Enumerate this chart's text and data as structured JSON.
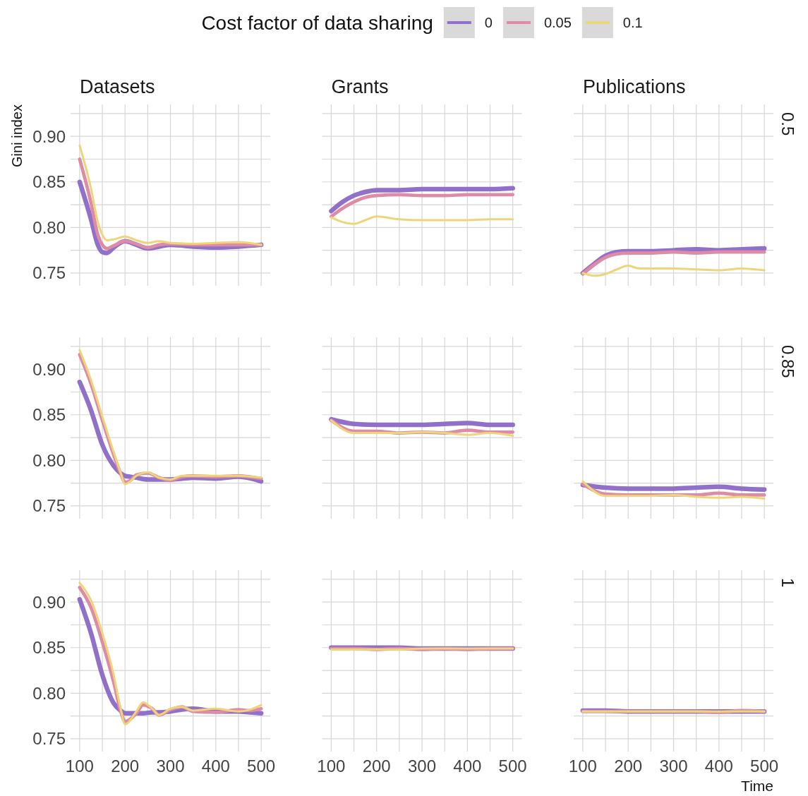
{
  "chart_data": [
    {
      "type": "line",
      "title": "Datasets",
      "ylabel": "Gini index",
      "legend": "top",
      "legend_title": "Cost factor of data sharing",
      "grid": true,
      "tick_labels": "y",
      "xlim": [
        80,
        520
      ],
      "ylim": [
        0.736,
        0.935
      ],
      "xticks": [
        100,
        150,
        200,
        250,
        300,
        350,
        400,
        450,
        500
      ],
      "yticks": [
        0.75,
        {
          "value": 0.775,
          "label": null
        },
        {
          "value": 0.8,
          "label": "0.80"
        },
        {
          "value": 0.825,
          "label": null
        },
        0.85,
        {
          "value": 0.875,
          "label": null
        },
        {
          "value": 0.9,
          "label": "0.90"
        },
        {
          "value": 0.925,
          "label": null
        }
      ],
      "x": [
        100,
        125,
        140,
        150,
        160,
        175,
        200,
        225,
        250,
        275,
        300,
        350,
        400,
        450,
        500
      ],
      "series": [
        {
          "name": "0",
          "color": "#9170c9",
          "values": [
            0.85,
            0.809,
            0.781,
            0.773,
            0.772,
            0.778,
            0.785,
            0.781,
            0.777,
            0.779,
            0.781,
            0.779,
            0.778,
            0.779,
            0.781
          ]
        },
        {
          "name": "0.05",
          "color": "#de8ca6",
          "values": [
            0.875,
            0.827,
            0.792,
            0.781,
            0.777,
            0.78,
            0.785,
            0.782,
            0.778,
            0.781,
            0.782,
            0.781,
            0.781,
            0.781,
            0.781
          ]
        },
        {
          "name": "0.1",
          "color": "#eed57a",
          "values": [
            0.89,
            0.843,
            0.806,
            0.792,
            0.786,
            0.787,
            0.79,
            0.786,
            0.783,
            0.785,
            0.783,
            0.782,
            0.783,
            0.784,
            0.781
          ]
        }
      ]
    },
    {
      "type": "line",
      "title": "Grants",
      "grid": true,
      "tick_labels": false,
      "xlim": [
        80,
        520
      ],
      "ylim": [
        0.736,
        0.935
      ],
      "xticks": [
        100,
        150,
        200,
        250,
        300,
        350,
        400,
        450,
        500
      ],
      "yticks": [
        0.75,
        0.775,
        0.8,
        0.825,
        0.85,
        0.875,
        0.9,
        0.925
      ],
      "x": [
        100,
        125,
        150,
        175,
        200,
        250,
        300,
        350,
        400,
        450,
        500
      ],
      "series": [
        {
          "color": "#9170c9",
          "values": [
            0.818,
            0.828,
            0.835,
            0.839,
            0.841,
            0.841,
            0.842,
            0.842,
            0.842,
            0.842,
            0.843
          ]
        },
        {
          "color": "#de8ca6",
          "values": [
            0.812,
            0.821,
            0.828,
            0.833,
            0.835,
            0.836,
            0.835,
            0.835,
            0.836,
            0.836,
            0.836
          ]
        },
        {
          "color": "#eed57a",
          "values": [
            0.811,
            0.806,
            0.804,
            0.808,
            0.812,
            0.809,
            0.808,
            0.808,
            0.808,
            0.809,
            0.809
          ]
        }
      ]
    },
    {
      "type": "line",
      "title": "Publications",
      "annotations": [
        "0.5"
      ],
      "grid": true,
      "tick_labels": false,
      "xlim": [
        80,
        520
      ],
      "ylim": [
        0.736,
        0.935
      ],
      "xticks": [
        100,
        150,
        200,
        250,
        300,
        350,
        400,
        450,
        500
      ],
      "yticks": [
        0.75,
        0.775,
        0.8,
        0.825,
        0.85,
        0.875,
        0.9,
        0.925
      ],
      "x": [
        100,
        125,
        150,
        175,
        200,
        225,
        250,
        300,
        350,
        400,
        450,
        500
      ],
      "series": [
        {
          "color": "#9170c9",
          "values": [
            0.75,
            0.76,
            0.769,
            0.773,
            0.774,
            0.774,
            0.774,
            0.775,
            0.776,
            0.775,
            0.776,
            0.777
          ]
        },
        {
          "color": "#de8ca6",
          "values": [
            0.749,
            0.759,
            0.767,
            0.771,
            0.772,
            0.772,
            0.772,
            0.773,
            0.772,
            0.773,
            0.773,
            0.773
          ]
        },
        {
          "color": "#eed57a",
          "values": [
            0.75,
            0.747,
            0.749,
            0.754,
            0.758,
            0.755,
            0.755,
            0.755,
            0.754,
            0.753,
            0.755,
            0.753
          ]
        }
      ]
    },
    {
      "type": "line",
      "grid": true,
      "tick_labels": "y",
      "xlim": [
        80,
        520
      ],
      "ylim": [
        0.736,
        0.935
      ],
      "xticks": [
        100,
        150,
        200,
        250,
        300,
        350,
        400,
        450,
        500
      ],
      "yticks": [
        0.75,
        {
          "value": 0.775,
          "label": null
        },
        {
          "value": 0.8,
          "label": "0.80"
        },
        {
          "value": 0.825,
          "label": null
        },
        0.85,
        {
          "value": 0.875,
          "label": null
        },
        {
          "value": 0.9,
          "label": "0.90"
        },
        {
          "value": 0.925,
          "label": null
        }
      ],
      "x": [
        100,
        125,
        150,
        175,
        190,
        200,
        212,
        225,
        250,
        275,
        300,
        325,
        350,
        400,
        450,
        500
      ],
      "series": [
        {
          "color": "#9170c9",
          "values": [
            0.886,
            0.855,
            0.817,
            0.794,
            0.786,
            0.783,
            0.782,
            0.781,
            0.779,
            0.779,
            0.779,
            0.78,
            0.781,
            0.78,
            0.782,
            0.777
          ]
        },
        {
          "color": "#de8ca6",
          "values": [
            0.916,
            0.884,
            0.844,
            0.806,
            0.786,
            0.776,
            0.778,
            0.784,
            0.786,
            0.781,
            0.778,
            0.782,
            0.783,
            0.782,
            0.783,
            0.78
          ]
        },
        {
          "color": "#eed57a",
          "values": [
            0.921,
            0.888,
            0.848,
            0.809,
            0.787,
            0.774,
            0.777,
            0.783,
            0.787,
            0.781,
            0.779,
            0.783,
            0.783,
            0.783,
            0.783,
            0.781
          ]
        }
      ]
    },
    {
      "type": "line",
      "grid": true,
      "tick_labels": false,
      "xlim": [
        80,
        520
      ],
      "ylim": [
        0.736,
        0.935
      ],
      "xticks": [
        100,
        150,
        200,
        250,
        300,
        350,
        400,
        450,
        500
      ],
      "yticks": [
        0.75,
        0.775,
        0.8,
        0.825,
        0.85,
        0.875,
        0.9,
        0.925
      ],
      "x": [
        100,
        150,
        200,
        250,
        300,
        350,
        400,
        450,
        500
      ],
      "series": [
        {
          "color": "#9170c9",
          "values": [
            0.845,
            0.84,
            0.839,
            0.839,
            0.839,
            0.84,
            0.841,
            0.839,
            0.839
          ]
        },
        {
          "color": "#de8ca6",
          "values": [
            0.844,
            0.832,
            0.832,
            0.83,
            0.831,
            0.83,
            0.833,
            0.831,
            0.831
          ]
        },
        {
          "color": "#eed57a",
          "values": [
            0.844,
            0.83,
            0.83,
            0.83,
            0.831,
            0.83,
            0.828,
            0.83,
            0.827
          ]
        }
      ]
    },
    {
      "type": "line",
      "annotations": [
        "0.85"
      ],
      "grid": true,
      "tick_labels": false,
      "xlim": [
        80,
        520
      ],
      "ylim": [
        0.736,
        0.935
      ],
      "xticks": [
        100,
        150,
        200,
        250,
        300,
        350,
        400,
        450,
        500
      ],
      "yticks": [
        0.75,
        0.775,
        0.8,
        0.825,
        0.85,
        0.875,
        0.9,
        0.925
      ],
      "x": [
        100,
        150,
        200,
        250,
        300,
        350,
        400,
        450,
        500
      ],
      "series": [
        {
          "color": "#9170c9",
          "values": [
            0.773,
            0.77,
            0.769,
            0.769,
            0.769,
            0.77,
            0.771,
            0.769,
            0.768
          ]
        },
        {
          "color": "#de8ca6",
          "values": [
            0.774,
            0.763,
            0.762,
            0.762,
            0.762,
            0.762,
            0.764,
            0.762,
            0.762
          ]
        },
        {
          "color": "#eed57a",
          "values": [
            0.777,
            0.761,
            0.761,
            0.761,
            0.762,
            0.76,
            0.759,
            0.76,
            0.758
          ]
        }
      ]
    },
    {
      "type": "line",
      "grid": true,
      "xlim": [
        80,
        520
      ],
      "ylim": [
        0.736,
        0.935
      ],
      "xticks": [
        100,
        {
          "value": 150,
          "label": null
        },
        200,
        {
          "value": 250,
          "label": null
        },
        300,
        {
          "value": 350,
          "label": null
        },
        400,
        {
          "value": 450,
          "label": null
        },
        500
      ],
      "yticks": [
        0.75,
        {
          "value": 0.775,
          "label": null
        },
        {
          "value": 0.8,
          "label": "0.80"
        },
        {
          "value": 0.825,
          "label": null
        },
        0.85,
        {
          "value": 0.875,
          "label": null
        },
        {
          "value": 0.9,
          "label": "0.90"
        },
        {
          "value": 0.925,
          "label": null
        }
      ],
      "x": [
        100,
        125,
        150,
        175,
        190,
        200,
        225,
        240,
        260,
        275,
        300,
        325,
        350,
        400,
        450,
        475,
        500
      ],
      "series": [
        {
          "color": "#9170c9",
          "values": [
            0.903,
            0.866,
            0.82,
            0.789,
            0.781,
            0.778,
            0.778,
            0.778,
            0.779,
            0.779,
            0.78,
            0.782,
            0.783,
            0.78,
            0.78,
            0.779,
            0.778
          ]
        },
        {
          "color": "#de8ca6",
          "values": [
            0.916,
            0.894,
            0.856,
            0.812,
            0.781,
            0.769,
            0.778,
            0.787,
            0.783,
            0.776,
            0.782,
            0.785,
            0.78,
            0.779,
            0.782,
            0.781,
            0.783
          ]
        },
        {
          "color": "#eed57a",
          "values": [
            0.921,
            0.902,
            0.866,
            0.82,
            0.784,
            0.766,
            0.78,
            0.79,
            0.783,
            0.776,
            0.783,
            0.785,
            0.781,
            0.783,
            0.78,
            0.782,
            0.787
          ]
        }
      ]
    },
    {
      "type": "line",
      "grid": true,
      "tick_labels": "x",
      "xlim": [
        80,
        520
      ],
      "ylim": [
        0.736,
        0.935
      ],
      "xticks": [
        100,
        {
          "value": 150,
          "label": null
        },
        200,
        {
          "value": 250,
          "label": null
        },
        300,
        {
          "value": 350,
          "label": null
        },
        400,
        {
          "value": 450,
          "label": null
        },
        500
      ],
      "yticks": [
        0.75,
        0.775,
        0.8,
        0.825,
        0.85,
        0.875,
        0.9,
        0.925
      ],
      "x": [
        100,
        150,
        200,
        250,
        300,
        350,
        400,
        450,
        500
      ],
      "series": [
        {
          "color": "#9170c9",
          "values": [
            0.85,
            0.85,
            0.85,
            0.85,
            0.849,
            0.849,
            0.849,
            0.849,
            0.849
          ]
        },
        {
          "color": "#de8ca6",
          "values": [
            0.849,
            0.849,
            0.848,
            0.849,
            0.848,
            0.849,
            0.848,
            0.849,
            0.849
          ]
        },
        {
          "color": "#eed57a",
          "values": [
            0.848,
            0.848,
            0.848,
            0.848,
            0.849,
            0.849,
            0.849,
            0.849,
            0.849
          ]
        }
      ]
    },
    {
      "type": "line",
      "xlabel": "Time",
      "annotations": [
        "1"
      ],
      "grid": true,
      "tick_labels": "x",
      "xlim": [
        80,
        520
      ],
      "ylim": [
        0.736,
        0.935
      ],
      "xticks": [
        100,
        {
          "value": 150,
          "label": null
        },
        200,
        {
          "value": 250,
          "label": null
        },
        300,
        {
          "value": 350,
          "label": null
        },
        400,
        {
          "value": 450,
          "label": null
        },
        500
      ],
      "yticks": [
        0.75,
        0.775,
        0.8,
        0.825,
        0.85,
        0.875,
        0.9,
        0.925
      ],
      "x": [
        100,
        150,
        200,
        250,
        300,
        350,
        400,
        450,
        500
      ],
      "series": [
        {
          "color": "#9170c9",
          "values": [
            0.781,
            0.781,
            0.78,
            0.78,
            0.78,
            0.78,
            0.78,
            0.78,
            0.78
          ]
        },
        {
          "color": "#de8ca6",
          "values": [
            0.78,
            0.78,
            0.78,
            0.78,
            0.78,
            0.78,
            0.779,
            0.781,
            0.78
          ]
        },
        {
          "color": "#eed57a",
          "values": [
            0.78,
            0.78,
            0.78,
            0.78,
            0.78,
            0.78,
            0.78,
            0.78,
            0.78
          ]
        }
      ]
    }
  ]
}
